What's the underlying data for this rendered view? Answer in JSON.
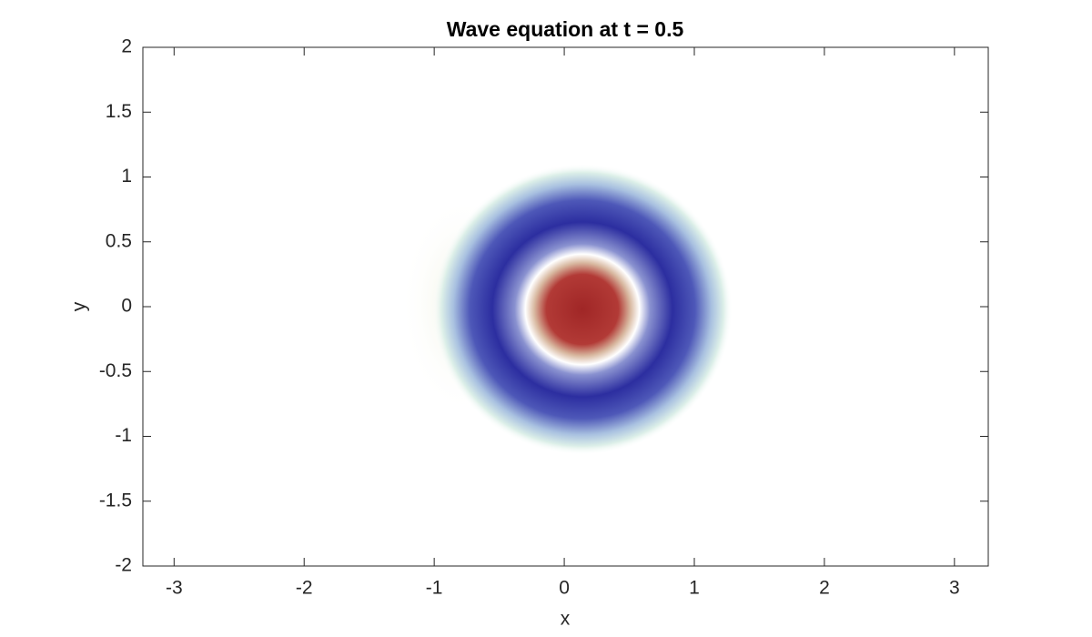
{
  "chart_data": {
    "type": "field",
    "title": "Wave equation at t = 0.5",
    "x_label": "x",
    "y_label": "y",
    "xlim": [
      -3.24,
      3.26
    ],
    "ylim": [
      -2,
      2
    ],
    "xticks": [
      -3,
      -2,
      -1,
      0,
      1,
      2,
      3
    ],
    "yticks": [
      -2,
      -1.5,
      -1,
      -0.5,
      0,
      0.5,
      1,
      1.5,
      2
    ]
  }
}
